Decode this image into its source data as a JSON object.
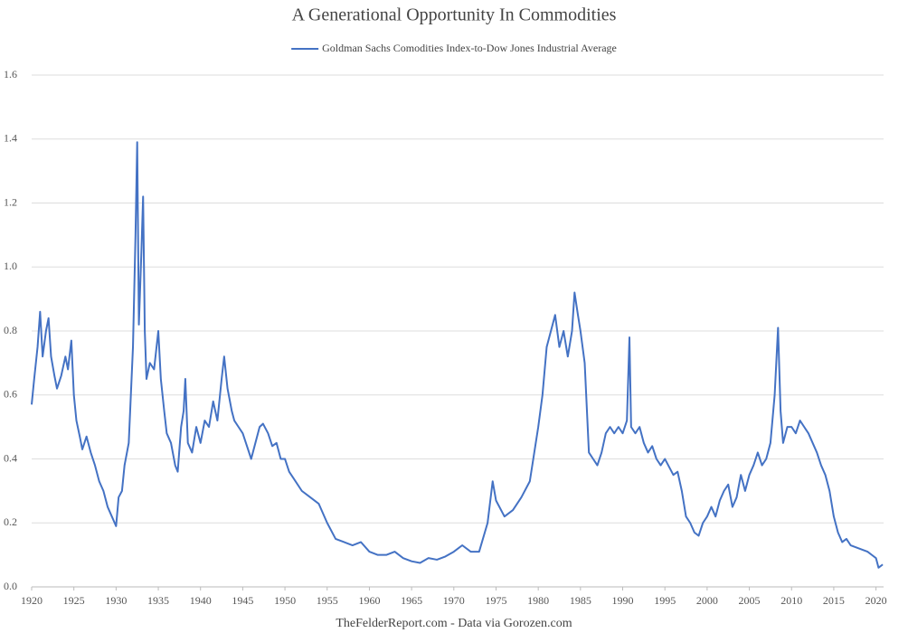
{
  "chart_data": {
    "type": "line",
    "title": "A Generational Opportunity In Commodities",
    "source": "TheFelderReport.com - Data via Gorozen.com",
    "x": [
      1920,
      1920.3,
      1920.7,
      1921,
      1921.3,
      1921.7,
      1922,
      1922.3,
      1922.7,
      1923,
      1923.5,
      1924,
      1924.3,
      1924.7,
      1925,
      1925.3,
      1925.7,
      1926,
      1926.5,
      1927,
      1927.5,
      1928,
      1928.5,
      1929,
      1929.5,
      1930,
      1930.3,
      1930.7,
      1931,
      1931.5,
      1932,
      1932.3,
      1932.5,
      1932.7,
      1933,
      1933.2,
      1933.4,
      1933.6,
      1934,
      1934.5,
      1935,
      1935.3,
      1935.7,
      1936,
      1936.5,
      1937,
      1937.3,
      1937.7,
      1938,
      1938.2,
      1938.5,
      1939,
      1939.5,
      1940,
      1940.5,
      1941,
      1941.5,
      1942,
      1942.5,
      1942.8,
      1943.2,
      1943.7,
      1944,
      1944.5,
      1945,
      1945.5,
      1946,
      1946.5,
      1947,
      1947.4,
      1948,
      1948.5,
      1949,
      1949.5,
      1950,
      1950.5,
      1951,
      1952,
      1953,
      1954,
      1955,
      1956,
      1957,
      1958,
      1959,
      1960,
      1961,
      1962,
      1963,
      1964,
      1965,
      1966,
      1967,
      1968,
      1969,
      1970,
      1971,
      1972,
      1973,
      1974,
      1974.6,
      1975,
      1976,
      1977,
      1978,
      1979,
      1980,
      1980.5,
      1981,
      1982,
      1982.5,
      1983,
      1983.5,
      1984,
      1984.3,
      1984.7,
      1985,
      1985.5,
      1986,
      1986.5,
      1987,
      1987.5,
      1988,
      1988.5,
      1989,
      1989.5,
      1990,
      1990.5,
      1990.8,
      1991,
      1991.5,
      1992,
      1992.5,
      1993,
      1993.5,
      1994,
      1994.5,
      1995,
      1996,
      1996.5,
      1997,
      1997.5,
      1998,
      1998.5,
      1999,
      1999.5,
      2000,
      2000.5,
      2001,
      2001.5,
      2002,
      2002.5,
      2003,
      2003.5,
      2004,
      2004.5,
      2005,
      2005.5,
      2006,
      2006.5,
      2007,
      2007.5,
      2008,
      2008.4,
      2008.7,
      2009,
      2009.5,
      2010,
      2010.5,
      2011,
      2011.5,
      2012,
      2012.5,
      2013,
      2013.5,
      2014,
      2014.5,
      2015,
      2015.5,
      2016,
      2016.5,
      2017,
      2018,
      2019,
      2019.5,
      2020,
      2020.3,
      2020.8
    ],
    "series": [
      {
        "name": "Goldman Sachs Comodities Index-to-Dow Jones Industrial Average",
        "color": "#4472c4",
        "values": [
          0.57,
          0.65,
          0.75,
          0.86,
          0.72,
          0.8,
          0.84,
          0.72,
          0.66,
          0.62,
          0.66,
          0.72,
          0.68,
          0.77,
          0.6,
          0.52,
          0.47,
          0.43,
          0.47,
          0.42,
          0.38,
          0.33,
          0.3,
          0.25,
          0.22,
          0.19,
          0.28,
          0.3,
          0.38,
          0.45,
          0.75,
          1.1,
          1.39,
          0.82,
          1.05,
          1.22,
          0.8,
          0.65,
          0.7,
          0.68,
          0.8,
          0.65,
          0.55,
          0.48,
          0.45,
          0.38,
          0.36,
          0.5,
          0.55,
          0.65,
          0.45,
          0.42,
          0.5,
          0.45,
          0.52,
          0.5,
          0.58,
          0.52,
          0.65,
          0.72,
          0.62,
          0.55,
          0.52,
          0.5,
          0.48,
          0.44,
          0.4,
          0.45,
          0.5,
          0.51,
          0.48,
          0.44,
          0.45,
          0.4,
          0.4,
          0.36,
          0.34,
          0.3,
          0.28,
          0.26,
          0.2,
          0.15,
          0.14,
          0.13,
          0.14,
          0.11,
          0.1,
          0.1,
          0.11,
          0.09,
          0.08,
          0.075,
          0.09,
          0.085,
          0.095,
          0.11,
          0.13,
          0.11,
          0.11,
          0.2,
          0.33,
          0.27,
          0.22,
          0.24,
          0.28,
          0.33,
          0.5,
          0.6,
          0.75,
          0.85,
          0.75,
          0.8,
          0.72,
          0.8,
          0.92,
          0.85,
          0.8,
          0.7,
          0.42,
          0.4,
          0.38,
          0.42,
          0.48,
          0.5,
          0.48,
          0.5,
          0.48,
          0.52,
          0.78,
          0.5,
          0.48,
          0.5,
          0.45,
          0.42,
          0.44,
          0.4,
          0.38,
          0.4,
          0.35,
          0.36,
          0.3,
          0.22,
          0.2,
          0.17,
          0.16,
          0.2,
          0.22,
          0.25,
          0.22,
          0.27,
          0.3,
          0.32,
          0.25,
          0.28,
          0.35,
          0.3,
          0.35,
          0.38,
          0.42,
          0.38,
          0.4,
          0.45,
          0.6,
          0.81,
          0.55,
          0.45,
          0.5,
          0.5,
          0.48,
          0.52,
          0.5,
          0.48,
          0.45,
          0.42,
          0.38,
          0.35,
          0.3,
          0.22,
          0.17,
          0.14,
          0.15,
          0.13,
          0.12,
          0.11,
          0.1,
          0.09,
          0.06,
          0.07
        ]
      }
    ],
    "xlim": [
      1920,
      2020.9
    ],
    "xticks": [
      1920,
      1925,
      1930,
      1935,
      1940,
      1945,
      1950,
      1955,
      1960,
      1965,
      1970,
      1975,
      1980,
      1985,
      1990,
      1995,
      2000,
      2005,
      2010,
      2015,
      2020
    ],
    "ylim": [
      0,
      1.6
    ],
    "yticks": [
      {
        "value": 0,
        "label": "0.0"
      },
      0.2,
      0.4,
      0.6,
      0.8,
      {
        "value": 1,
        "label": "1.0"
      },
      1.2,
      1.4,
      1.6
    ],
    "grid": true,
    "legend": "top"
  }
}
